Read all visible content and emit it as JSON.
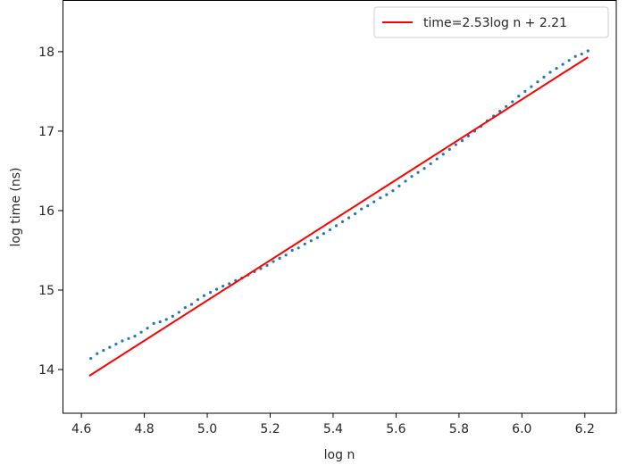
{
  "chart_data": {
    "type": "scatter",
    "title": "",
    "xlabel": "log n",
    "ylabel": "log time (ns)",
    "xlim": [
      4.54,
      6.3
    ],
    "ylim": [
      13.45,
      18.65
    ],
    "grid": false,
    "legend_position": "top-right",
    "x_ticks": [
      4.6,
      4.8,
      5.0,
      5.2,
      5.4,
      5.6,
      5.8,
      6.0,
      6.2
    ],
    "x_tick_labels": [
      "4.6",
      "4.8",
      "5.0",
      "5.2",
      "5.4",
      "5.6",
      "5.8",
      "6.0",
      "6.2"
    ],
    "y_ticks": [
      14,
      15,
      16,
      17,
      18
    ],
    "y_tick_labels": [
      "14",
      "15",
      "16",
      "17",
      "18"
    ],
    "series": [
      {
        "kind": "scatter",
        "color": "#1f77b4",
        "x": [
          4.63,
          4.65,
          4.67,
          4.69,
          4.71,
          4.73,
          4.75,
          4.77,
          4.79,
          4.81,
          4.83,
          4.85,
          4.87,
          4.89,
          4.91,
          4.93,
          4.95,
          4.97,
          4.99,
          5.01,
          5.03,
          5.05,
          5.07,
          5.09,
          5.11,
          5.13,
          5.15,
          5.17,
          5.19,
          5.21,
          5.23,
          5.25,
          5.27,
          5.29,
          5.31,
          5.33,
          5.35,
          5.37,
          5.39,
          5.41,
          5.43,
          5.45,
          5.47,
          5.49,
          5.51,
          5.53,
          5.55,
          5.57,
          5.59,
          5.61,
          5.63,
          5.65,
          5.67,
          5.69,
          5.71,
          5.73,
          5.75,
          5.77,
          5.79,
          5.81,
          5.83,
          5.85,
          5.87,
          5.89,
          5.91,
          5.93,
          5.95,
          5.97,
          5.99,
          6.01,
          6.03,
          6.05,
          6.07,
          6.09,
          6.11,
          6.13,
          6.15,
          6.17,
          6.19,
          6.21
        ],
        "y": [
          14.14,
          14.2,
          14.24,
          14.28,
          14.32,
          14.36,
          14.39,
          14.42,
          14.47,
          14.52,
          14.58,
          14.6,
          14.63,
          14.67,
          14.72,
          14.78,
          14.82,
          14.88,
          14.93,
          14.97,
          15.01,
          15.05,
          15.08,
          15.12,
          15.15,
          15.19,
          15.23,
          15.27,
          15.31,
          15.36,
          15.4,
          15.44,
          15.5,
          15.53,
          15.58,
          15.62,
          15.66,
          15.71,
          15.76,
          15.81,
          15.86,
          15.91,
          15.96,
          16.02,
          16.06,
          16.11,
          16.16,
          16.2,
          16.25,
          16.31,
          16.37,
          16.43,
          16.48,
          16.53,
          16.59,
          16.65,
          16.71,
          16.77,
          16.83,
          16.88,
          16.94,
          17.0,
          17.06,
          17.13,
          17.19,
          17.25,
          17.31,
          17.37,
          17.44,
          17.5,
          17.56,
          17.62,
          17.68,
          17.74,
          17.79,
          17.84,
          17.89,
          17.94,
          17.97,
          18.01
        ]
      },
      {
        "kind": "line",
        "name": "time=2.53log n + 2.21",
        "color": "#ff0000",
        "x": [
          4.625,
          6.21
        ],
        "y": [
          13.92,
          17.93
        ]
      }
    ]
  }
}
